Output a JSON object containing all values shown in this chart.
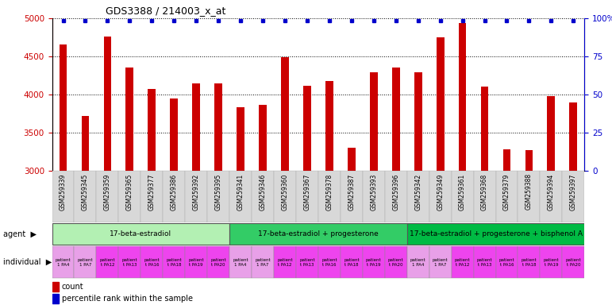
{
  "title": "GDS3388 / 214003_x_at",
  "gsm_labels": [
    "GSM259339",
    "GSM259345",
    "GSM259359",
    "GSM259365",
    "GSM259377",
    "GSM259386",
    "GSM259392",
    "GSM259395",
    "GSM259341",
    "GSM259346",
    "GSM259360",
    "GSM259367",
    "GSM259378",
    "GSM259387",
    "GSM259393",
    "GSM259396",
    "GSM259342",
    "GSM259349",
    "GSM259361",
    "GSM259368",
    "GSM259379",
    "GSM259388",
    "GSM259394",
    "GSM259397"
  ],
  "counts": [
    4660,
    3720,
    4760,
    4350,
    4070,
    3950,
    4150,
    4150,
    3830,
    3870,
    4490,
    4110,
    4180,
    3300,
    4290,
    4350,
    4290,
    4750,
    4940,
    4100,
    3280,
    3270,
    3980,
    3900
  ],
  "bar_color": "#cc0000",
  "dot_color": "#0000cc",
  "ylim_left": [
    3000,
    5000
  ],
  "ylim_right": [
    0,
    100
  ],
  "yticks_left": [
    3000,
    3500,
    4000,
    4500,
    5000
  ],
  "yticks_right": [
    0,
    25,
    50,
    75,
    100
  ],
  "agent_groups": [
    {
      "label": "17-beta-estradiol",
      "start": 0,
      "end": 8,
      "color": "#b3f0b3"
    },
    {
      "label": "17-beta-estradiol + progesterone",
      "start": 8,
      "end": 16,
      "color": "#33cc66"
    },
    {
      "label": "17-beta-estradiol + progesterone + bisphenol A",
      "start": 16,
      "end": 24,
      "color": "#00bb44"
    }
  ],
  "individual_labels": [
    "patient\n1 PA4",
    "patient\n1 PA7",
    "patient\nt PA12",
    "patient\nt PA13",
    "patient\nt PA16",
    "patient\nt PA18",
    "patient\nt PA19",
    "patient\nt PA20",
    "patient\n1 PA4",
    "patient\n1 PA7",
    "patient\nt PA12",
    "patient\nt PA13",
    "patient\nt PA16",
    "patient\nt PA18",
    "patient\nt PA19",
    "patient\nt PA20",
    "patient\n1 PA4",
    "patient\n1 PA7",
    "patient\nt PA12",
    "patient\nt PA13",
    "patient\nt PA16",
    "patient\nt PA18",
    "patient\nt PA19",
    "patient\nt PA20"
  ],
  "individual_colors": [
    "#e8a0e8",
    "#e8a0e8",
    "#ee44ee",
    "#ee44ee",
    "#ee44ee",
    "#ee44ee",
    "#ee44ee",
    "#ee44ee",
    "#e8a0e8",
    "#e8a0e8",
    "#ee44ee",
    "#ee44ee",
    "#ee44ee",
    "#ee44ee",
    "#ee44ee",
    "#ee44ee",
    "#e8a0e8",
    "#e8a0e8",
    "#ee44ee",
    "#ee44ee",
    "#ee44ee",
    "#ee44ee",
    "#ee44ee",
    "#ee44ee"
  ],
  "ylabel_left_color": "#cc0000",
  "ylabel_right_color": "#0000cc",
  "background_color": "#ffffff",
  "tick_label_bg": "#d8d8d8",
  "bar_width": 0.35
}
